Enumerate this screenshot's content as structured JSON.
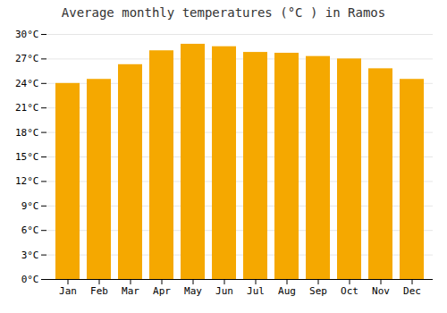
{
  "chart_data": {
    "type": "bar",
    "title": "Average monthly temperatures (°C ) in Ramos",
    "categories": [
      "Jan",
      "Feb",
      "Mar",
      "Apr",
      "May",
      "Jun",
      "Jul",
      "Aug",
      "Sep",
      "Oct",
      "Nov",
      "Dec"
    ],
    "values": [
      24.0,
      24.5,
      26.3,
      28.0,
      28.8,
      28.5,
      27.8,
      27.7,
      27.3,
      27.0,
      25.8,
      24.5
    ],
    "color": "#F5A800",
    "ylim": [
      0,
      30
    ],
    "yticks": [
      {
        "value": 0,
        "label": "0°C"
      },
      {
        "value": 3,
        "label": "3°C"
      },
      {
        "value": 6,
        "label": "6°C"
      },
      {
        "value": 9,
        "label": "9°C"
      },
      {
        "value": 12,
        "label": "12°C"
      },
      {
        "value": 15,
        "label": "15°C"
      },
      {
        "value": 18,
        "label": "18°C"
      },
      {
        "value": 21,
        "label": "21°C"
      },
      {
        "value": 24,
        "label": "24°C"
      },
      {
        "value": 27,
        "label": "27°C"
      },
      {
        "value": 30,
        "label": "30°C"
      }
    ],
    "grid": true
  }
}
